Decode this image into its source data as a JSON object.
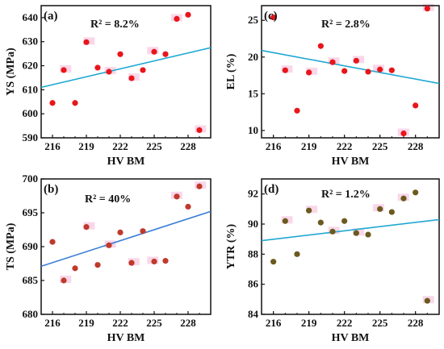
{
  "chart_data": [
    {
      "type": "scatter",
      "panel": "(a)",
      "annotation": "R² = 8.2%",
      "xlabel": "HV BM",
      "ylabel": "YS (MPa)",
      "xlim": [
        215,
        230
      ],
      "ylim": [
        590,
        645
      ],
      "xticks": [
        "216",
        "219",
        "222",
        "225",
        "228"
      ],
      "yticks": [
        "590",
        "600",
        "610",
        "620",
        "630",
        "640"
      ],
      "x": [
        216,
        217,
        218,
        219,
        220,
        221,
        222,
        223,
        224,
        225,
        226,
        227,
        228,
        229
      ],
      "y": [
        604.5,
        618.2,
        604.5,
        629.8,
        619.2,
        617.5,
        624.8,
        614.8,
        618.2,
        625.8,
        624.8,
        639.5,
        641.2,
        593.2
      ],
      "fit": {
        "x": [
          215,
          230
        ],
        "y": [
          611.0,
          627.5
        ]
      },
      "colors": {
        "points": "#e8161b",
        "fit": "#1fa8d2",
        "highlight": "#f6c6df"
      }
    },
    {
      "type": "scatter",
      "panel": "(c)",
      "annotation": "R² = 2.8%",
      "xlabel": "HV BM",
      "ylabel": "EL (%)",
      "xlim": [
        215,
        230
      ],
      "ylim": [
        9,
        27
      ],
      "xticks": [
        "216",
        "219",
        "222",
        "225",
        "228"
      ],
      "yticks": [
        "10",
        "15",
        "20",
        "25"
      ],
      "x": [
        216,
        217,
        218,
        219,
        220,
        221,
        222,
        223,
        224,
        225,
        226,
        227,
        228,
        229
      ],
      "y": [
        25.4,
        18.2,
        12.7,
        17.9,
        21.5,
        19.3,
        18.1,
        19.5,
        18.0,
        18.3,
        18.2,
        9.6,
        13.4,
        26.6
      ],
      "fit": {
        "x": [
          215,
          230
        ],
        "y": [
          20.9,
          16.4
        ]
      },
      "colors": {
        "points": "#e8161b",
        "fit": "#1fa8d2",
        "highlight": "#f6c6df"
      }
    },
    {
      "type": "scatter",
      "panel": "(b)",
      "annotation": "R² = 40%",
      "xlabel": "HV BM",
      "ylabel": "TS (MPa)",
      "xlim": [
        215,
        230
      ],
      "ylim": [
        680,
        700
      ],
      "xticks": [
        "216",
        "219",
        "222",
        "225",
        "228"
      ],
      "yticks": [
        "680",
        "685",
        "690",
        "695",
        "700"
      ],
      "x": [
        216,
        217,
        218,
        219,
        220,
        221,
        222,
        223,
        224,
        225,
        226,
        227,
        228,
        229
      ],
      "y": [
        690.7,
        685.0,
        686.8,
        692.9,
        687.3,
        690.2,
        692.1,
        687.6,
        692.3,
        687.8,
        687.9,
        697.4,
        695.9,
        698.9
      ],
      "fit": {
        "x": [
          215,
          230
        ],
        "y": [
          687.1,
          695.2
        ]
      },
      "colors": {
        "points": "#c0392b",
        "fit": "#3b7fd6",
        "highlight": "#f6c6df"
      }
    },
    {
      "type": "scatter",
      "panel": "(d)",
      "annotation": "R² = 1.2%",
      "xlabel": "HV BM",
      "ylabel": "YTR (%)",
      "xlim": [
        215,
        230
      ],
      "ylim": [
        84,
        93
      ],
      "xticks": [
        "216",
        "219",
        "222",
        "225",
        "228"
      ],
      "yticks": [
        "84",
        "86",
        "88",
        "90",
        "92"
      ],
      "x": [
        216,
        217,
        218,
        219,
        220,
        221,
        222,
        223,
        224,
        225,
        226,
        227,
        228,
        229
      ],
      "y": [
        87.5,
        90.2,
        88.0,
        90.9,
        90.1,
        89.5,
        90.2,
        89.4,
        89.3,
        91.0,
        90.8,
        91.7,
        92.1,
        84.9
      ],
      "fit": {
        "x": [
          215,
          230
        ],
        "y": [
          88.9,
          90.3
        ]
      },
      "colors": {
        "points": "#6b5a1e",
        "fit": "#1fa8d2",
        "highlight": "#f6c6df"
      }
    }
  ]
}
